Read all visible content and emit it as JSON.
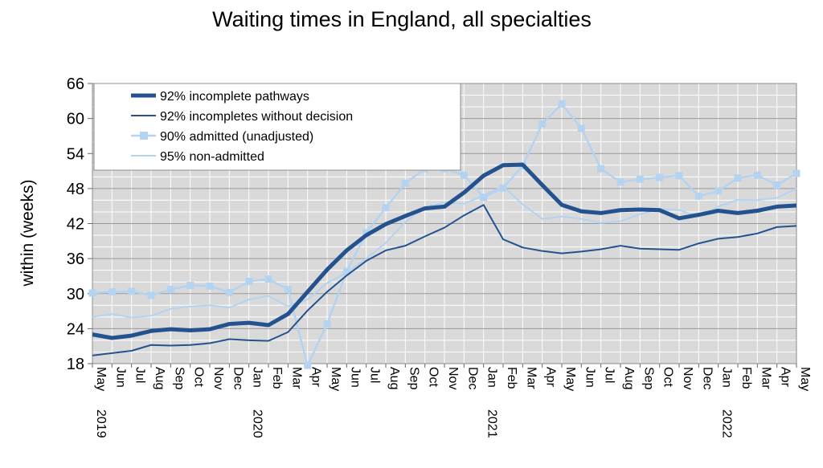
{
  "chart_data": {
    "type": "line",
    "title": "Waiting times in England, all specialties",
    "ylabel": "within  (weeks)",
    "xlabel": "",
    "ylim": [
      18,
      66
    ],
    "yticks": [
      18,
      24,
      30,
      36,
      42,
      48,
      54,
      60,
      66
    ],
    "grid": true,
    "legend_position": "top-left",
    "categories": [
      "May",
      "Jun",
      "Jul",
      "Aug",
      "Sep",
      "Oct",
      "Nov",
      "Dec",
      "Jan",
      "Feb",
      "Mar",
      "Apr",
      "May",
      "Jun",
      "Jul",
      "Aug",
      "Sep",
      "Oct",
      "Nov",
      "Dec",
      "Jan",
      "Feb",
      "Mar",
      "Apr",
      "May",
      "Jun",
      "Jul",
      "Aug",
      "Sep",
      "Oct",
      "Nov",
      "Dec",
      "Jan",
      "Feb",
      "Mar",
      "Apr",
      "May"
    ],
    "year_labels": [
      {
        "index": 0,
        "label": "2019"
      },
      {
        "index": 8,
        "label": "2020"
      },
      {
        "index": 20,
        "label": "2021"
      },
      {
        "index": 32,
        "label": "2022"
      }
    ],
    "series": [
      {
        "name": "92% incomplete pathways",
        "color": "#24528f",
        "marker": "none",
        "values": [
          23.0,
          22.4,
          22.8,
          23.6,
          23.9,
          23.7,
          23.9,
          24.8,
          25.0,
          24.6,
          26.5,
          30.3,
          34.1,
          37.4,
          40.0,
          41.9,
          43.3,
          44.6,
          44.9,
          47.3,
          50.2,
          52.0,
          52.1,
          48.6,
          45.2,
          44.1,
          43.8,
          44.3,
          44.4,
          44.3,
          42.9,
          43.5,
          44.2,
          43.8,
          44.2,
          44.9,
          45.1
        ]
      },
      {
        "name": "92% incompletes without decision",
        "color": "#24528f",
        "marker": "none",
        "values": [
          19.4,
          19.8,
          20.2,
          21.2,
          21.1,
          21.2,
          21.5,
          22.2,
          22.0,
          21.9,
          23.4,
          27.1,
          30.3,
          33.1,
          35.6,
          37.4,
          38.2,
          39.8,
          41.3,
          43.4,
          45.2,
          39.3,
          37.9,
          37.3,
          36.9,
          37.2,
          37.6,
          38.2,
          37.7,
          37.6,
          37.5,
          38.6,
          39.4,
          39.7,
          40.3,
          41.4,
          41.6
        ]
      },
      {
        "name": "90% admitted (unadjusted)",
        "color": "#b4d3f0",
        "marker": "square",
        "values": [
          30.1,
          30.3,
          30.4,
          29.7,
          30.7,
          31.4,
          31.3,
          30.2,
          32.1,
          32.5,
          30.7,
          17.7,
          24.8,
          33.8,
          40.4,
          44.7,
          48.9,
          51.4,
          51.4,
          50.3,
          46.5,
          48.1,
          51.9,
          59.1,
          62.5,
          58.3,
          51.4,
          49.1,
          49.6,
          49.9,
          50.2,
          46.7,
          47.6,
          49.8,
          50.3,
          48.6,
          50.6
        ]
      },
      {
        "name": "95% non-admitted",
        "color": "#b4d3f0",
        "marker": "none",
        "values": [
          26.0,
          26.5,
          25.9,
          26.2,
          27.4,
          27.8,
          28.0,
          27.6,
          29.0,
          29.6,
          27.8,
          29.0,
          31.8,
          33.6,
          36.0,
          38.7,
          42.3,
          44.8,
          45.6,
          45.4,
          46.8,
          48.4,
          45.3,
          42.8,
          43.2,
          42.8,
          42.1,
          42.4,
          43.6,
          44.5,
          44.3,
          43.2,
          44.9,
          46.1,
          46.0,
          46.4,
          48.0
        ]
      }
    ]
  }
}
